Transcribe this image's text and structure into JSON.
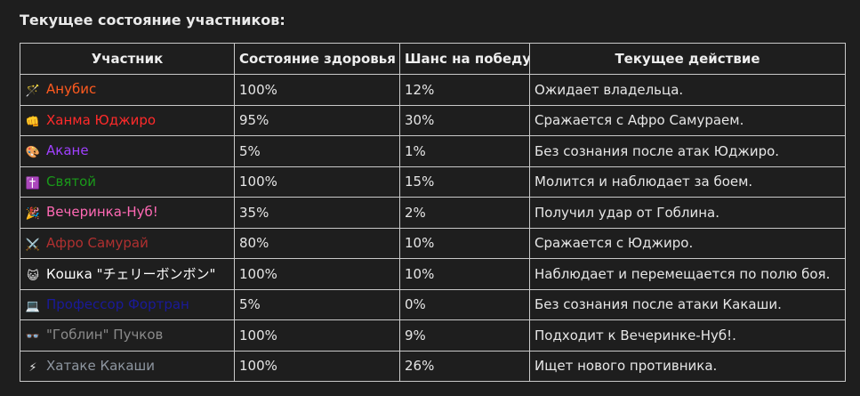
{
  "heading": "Текущее состояние участников:",
  "table": {
    "columns": [
      "Участник",
      "Состояние здоровья",
      "Шанс на победу",
      "Текущее действие"
    ],
    "rows": [
      {
        "icon": "magic-wand-icon",
        "glyph": "🪄",
        "name": "Анубис",
        "color": "#ff5a1f",
        "health": "100%",
        "chance": "12%",
        "action": "Ожидает владельца."
      },
      {
        "icon": "fist-icon",
        "glyph": "👊",
        "name": "Ханма Юджиро",
        "color": "#ff2a2a",
        "health": "95%",
        "chance": "30%",
        "action": "Сражается с Афро Самураем."
      },
      {
        "icon": "palette-icon",
        "glyph": "🎨",
        "name": "Акане",
        "color": "#a040ff",
        "health": "5%",
        "chance": "1%",
        "action": "Без сознания после атак Юджиро."
      },
      {
        "icon": "cross-icon",
        "glyph": "✝️",
        "name": "Святой",
        "color": "#1a9a1a",
        "health": "100%",
        "chance": "15%",
        "action": "Молится и наблюдает за боем."
      },
      {
        "icon": "party-popper-icon",
        "glyph": "🎉",
        "name": "Вечеринка-Нуб!",
        "color": "#ff69b4",
        "health": "35%",
        "chance": "2%",
        "action": "Получил удар от Гоблина."
      },
      {
        "icon": "crossed-swords-icon",
        "glyph": "⚔️",
        "name": "Афро Самурай",
        "color": "#b03030",
        "health": "80%",
        "chance": "10%",
        "action": "Сражается с Юджиро."
      },
      {
        "icon": "cat-face-icon",
        "glyph": "😺",
        "name": "Кошка \"チェリーボンボン\"",
        "color": "#ffffff",
        "health": "100%",
        "chance": "10%",
        "action": "Наблюдает и перемещается по полю боя."
      },
      {
        "icon": "laptop-icon",
        "glyph": "💻",
        "name": "Профессор Фортран",
        "color": "#1a1a99",
        "health": "5%",
        "chance": "0%",
        "action": "Без сознания после атаки Какаши."
      },
      {
        "icon": "glasses-icon",
        "glyph": "👓",
        "name": "\"Гоблин\" Пучков",
        "color": "#8a8a8a",
        "health": "100%",
        "chance": "9%",
        "action": "Подходит к Вечеринке-Нуб!."
      },
      {
        "icon": "lightning-icon",
        "glyph": "⚡",
        "name": "Хатаке Какаши",
        "color": "#8e96a0",
        "health": "100%",
        "chance": "26%",
        "action": "Ищет нового противника."
      }
    ]
  }
}
